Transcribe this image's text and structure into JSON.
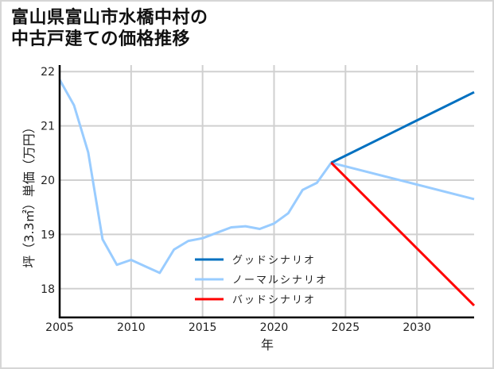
{
  "title_line1": "富山県富山市水橋中村の",
  "title_line2": "中古戸建ての価格推移",
  "chart_data": {
    "type": "line",
    "title": "富山県富山市水橋中村の中古戸建ての価格推移",
    "xlabel": "年",
    "ylabel": "坪（3.3㎡）単価（万円）",
    "xlim": [
      2005,
      2034
    ],
    "ylim": [
      17.47,
      22.12
    ],
    "xticks": [
      2005,
      2010,
      2015,
      2020,
      2025,
      2030
    ],
    "yticks": [
      18,
      19,
      20,
      21,
      22
    ],
    "grid": true,
    "legend_position": "lower center (inside plot)",
    "series": [
      {
        "name": "ノーマルシナリオ",
        "color": "#99ccff",
        "x": [
          2005,
          2006,
          2007,
          2008,
          2009,
          2010,
          2011,
          2012,
          2013,
          2014,
          2015,
          2016,
          2017,
          2018,
          2019,
          2020,
          2021,
          2022,
          2023,
          2024,
          2034
        ],
        "values": [
          21.85,
          21.38,
          20.51,
          18.91,
          18.44,
          18.53,
          18.41,
          18.29,
          18.72,
          18.88,
          18.93,
          19.03,
          19.13,
          19.15,
          19.1,
          19.2,
          19.39,
          19.82,
          19.95,
          20.32,
          19.65
        ]
      },
      {
        "name": "グッドシナリオ",
        "color": "#0070c0",
        "x": [
          2024,
          2034
        ],
        "values": [
          20.32,
          21.62
        ]
      },
      {
        "name": "バッドシナリオ",
        "color": "#ff0000",
        "x": [
          2024,
          2034
        ],
        "values": [
          20.32,
          17.69
        ]
      }
    ]
  },
  "legend": [
    {
      "label": "グッドシナリオ",
      "color": "#0070c0"
    },
    {
      "label": "ノーマルシナリオ",
      "color": "#99ccff"
    },
    {
      "label": "バッドシナリオ",
      "color": "#ff0000"
    }
  ],
  "colors": {
    "grid": "#d0d0d0",
    "axis": "#000000",
    "frame": "#d6d6d6"
  }
}
